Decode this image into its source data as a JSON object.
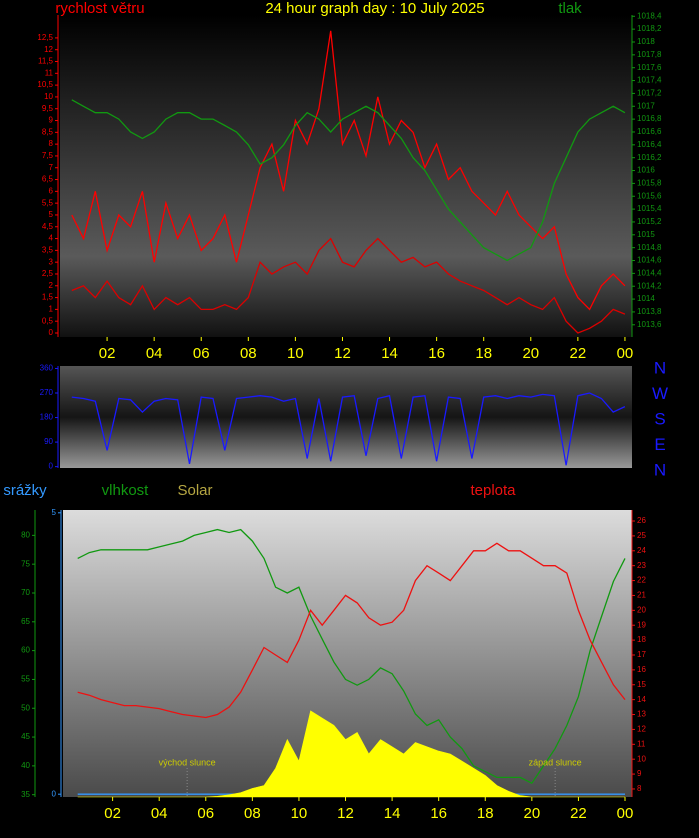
{
  "chart_data": [
    {
      "type": "line",
      "title": "24 hour graph day : 10 July 2025",
      "y_label": "rychlost větru",
      "y2_label": "tlak",
      "x": [
        0.5,
        1,
        1.5,
        2,
        2.5,
        3,
        3.5,
        4,
        4.5,
        5,
        5.5,
        6,
        6.5,
        7,
        7.5,
        8,
        8.5,
        9,
        9.5,
        10,
        10.5,
        11,
        11.5,
        12,
        12.5,
        13,
        13.5,
        14,
        14.5,
        15,
        15.5,
        16,
        16.5,
        17,
        17.5,
        18,
        18.5,
        19,
        19.5,
        20,
        20.5,
        21,
        21.5,
        22,
        22.5,
        23,
        23.5,
        24
      ],
      "xlim": [
        0,
        24.3
      ],
      "xticks": [
        {
          "value": 2,
          "label": "02"
        },
        {
          "value": 4,
          "label": "04"
        },
        {
          "value": 6,
          "label": "06"
        },
        {
          "value": 8,
          "label": "08"
        },
        10,
        12,
        14,
        16,
        18,
        20,
        22,
        {
          "value": 24,
          "label": "00"
        }
      ],
      "ylim": [
        -0.17,
        13.47
      ],
      "yticks": [
        0,
        {
          "value": 0.5,
          "label": "0,5"
        },
        1,
        {
          "value": 1.5,
          "label": "1,5"
        },
        2,
        {
          "value": 2.5,
          "label": "2,5"
        },
        3,
        {
          "value": 3.5,
          "label": "3,5"
        },
        4,
        {
          "value": 4.5,
          "label": "4,5"
        },
        5,
        {
          "value": 5.5,
          "label": "5,5"
        },
        6,
        {
          "value": 6.5,
          "label": "6,5"
        },
        7,
        {
          "value": 7.5,
          "label": "7,5"
        },
        8,
        {
          "value": 8.5,
          "label": "8,5"
        },
        9,
        {
          "value": 9.5,
          "label": "9,5"
        },
        10,
        {
          "value": 10.5,
          "label": "10,5"
        },
        11,
        {
          "value": 11.5,
          "label": "11,5"
        },
        12,
        {
          "value": 12.5,
          "label": "12,5"
        }
      ],
      "y2lim": [
        1013.41,
        1018.42
      ],
      "y2ticks": [
        {
          "value": 1013.6,
          "label": "1013,6"
        },
        {
          "value": 1013.8,
          "label": "1013,8"
        },
        1014,
        {
          "value": 1014.2,
          "label": "1014,2"
        },
        {
          "value": 1014.4,
          "label": "1014,4"
        },
        {
          "value": 1014.6,
          "label": "1014,6"
        },
        {
          "value": 1014.8,
          "label": "1014,8"
        },
        1015,
        {
          "value": 1015.2,
          "label": "1015,2"
        },
        {
          "value": 1015.4,
          "label": "1015,4"
        },
        {
          "value": 1015.6,
          "label": "1015,6"
        },
        {
          "value": 1015.8,
          "label": "1015,8"
        },
        1016,
        {
          "value": 1016.2,
          "label": "1016,2"
        },
        {
          "value": 1016.4,
          "label": "1016,4"
        },
        {
          "value": 1016.6,
          "label": "1016,6"
        },
        {
          "value": 1016.8,
          "label": "1016,8"
        },
        1017,
        {
          "value": 1017.2,
          "label": "1017,2"
        },
        {
          "value": 1017.4,
          "label": "1017,4"
        },
        {
          "value": 1017.6,
          "label": "1017,6"
        },
        {
          "value": 1017.8,
          "label": "1017,8"
        },
        1018,
        {
          "value": 1018.2,
          "label": "1018,2"
        },
        {
          "value": 1018.4,
          "label": "1018,4"
        }
      ],
      "series": [
        {
          "color": "#ff0000",
          "values": [
            5,
            4,
            6,
            3.5,
            5,
            4.5,
            6,
            3,
            5.5,
            4,
            5,
            3.5,
            4,
            5,
            3,
            5,
            7,
            8,
            6,
            9,
            8,
            9.5,
            12.8,
            8,
            9,
            7.5,
            10,
            8,
            9,
            8.5,
            7,
            8,
            6.5,
            7,
            6,
            5.5,
            5,
            6,
            5,
            4.5,
            4,
            4.5,
            2.5,
            1.5,
            1,
            2,
            2.5,
            2
          ]
        },
        {
          "color": "#dd0000",
          "values": [
            1.8,
            2,
            1.5,
            2.2,
            1.5,
            1.2,
            2,
            1,
            1.5,
            1.2,
            1.5,
            1,
            1,
            1.2,
            1,
            1.5,
            3,
            2.5,
            2.8,
            3,
            2.5,
            3.5,
            4,
            3,
            2.8,
            3.5,
            4,
            3.5,
            3,
            3.2,
            2.8,
            3,
            2.5,
            2.2,
            2,
            1.8,
            1.5,
            1.2,
            1.5,
            1.2,
            1,
            1.5,
            0.5,
            0,
            0.2,
            0.5,
            1,
            0.8
          ]
        },
        {
          "color": "#119911",
          "axis": "y2",
          "values": [
            1017.1,
            1017,
            1016.9,
            1016.9,
            1016.8,
            1016.6,
            1016.5,
            1016.6,
            1016.8,
            1016.9,
            1016.9,
            1016.8,
            1016.8,
            1016.7,
            1016.6,
            1016.4,
            1016.1,
            1016.2,
            1016.4,
            1016.7,
            1016.9,
            1016.8,
            1016.6,
            1016.8,
            1016.9,
            1017,
            1016.9,
            1016.7,
            1016.5,
            1016.2,
            1016,
            1015.7,
            1015.4,
            1015.2,
            1015,
            1014.8,
            1014.7,
            1014.6,
            1014.7,
            1014.8,
            1015.2,
            1015.8,
            1016.2,
            1016.6,
            1016.8,
            1016.9,
            1017,
            1016.9
          ]
        }
      ]
    },
    {
      "type": "line",
      "x": [
        0.5,
        1,
        1.5,
        2,
        2.5,
        3,
        3.5,
        4,
        4.5,
        5,
        5.5,
        6,
        6.5,
        7,
        7.5,
        8,
        8.5,
        9,
        9.5,
        10,
        10.5,
        11,
        11.5,
        12,
        12.5,
        13,
        13.5,
        14,
        14.5,
        15,
        15.5,
        16,
        16.5,
        17,
        17.5,
        18,
        18.5,
        19,
        19.5,
        20,
        20.5,
        21,
        21.5,
        22,
        22.5,
        23,
        23.5,
        24
      ],
      "xlim": [
        0,
        24.3
      ],
      "ylim": [
        -5,
        369
      ],
      "yticks": [
        0,
        90,
        180,
        270,
        360
      ],
      "direction_labels": [
        "N",
        "W",
        "S",
        "E",
        "N"
      ],
      "series": [
        {
          "color": "#1a1aff",
          "values": [
            255,
            250,
            240,
            60,
            250,
            245,
            200,
            240,
            250,
            245,
            10,
            255,
            250,
            60,
            250,
            255,
            260,
            255,
            240,
            250,
            30,
            250,
            20,
            255,
            260,
            40,
            250,
            260,
            30,
            255,
            260,
            20,
            255,
            250,
            30,
            255,
            260,
            250,
            260,
            255,
            265,
            260,
            5,
            260,
            270,
            250,
            200,
            220
          ]
        }
      ]
    },
    {
      "type": "line",
      "x": [
        0.5,
        1,
        1.5,
        2,
        2.5,
        3,
        3.5,
        4,
        4.5,
        5,
        5.5,
        6,
        6.5,
        7,
        7.5,
        8,
        8.5,
        9,
        9.5,
        10,
        10.5,
        11,
        11.5,
        12,
        12.5,
        13,
        13.5,
        14,
        14.5,
        15,
        15.5,
        16,
        16.5,
        17,
        17.5,
        18,
        18.5,
        19,
        19.5,
        20,
        20.5,
        21,
        21.5,
        22,
        22.5,
        23,
        23.5,
        24
      ],
      "xlim": [
        -0.13,
        24.3
      ],
      "xticks": [
        {
          "value": 2,
          "label": "02"
        },
        {
          "value": 4,
          "label": "04"
        },
        {
          "value": 6,
          "label": "06"
        },
        {
          "value": 8,
          "label": "08"
        },
        10,
        12,
        14,
        16,
        18,
        20,
        22,
        {
          "value": 24,
          "label": "00"
        }
      ],
      "ylim": [
        34.6,
        84.4
      ],
      "yticks": [
        35,
        40,
        45,
        50,
        55,
        60,
        65,
        70,
        75,
        80
      ],
      "y2lim": [
        7.46,
        26.74
      ],
      "y2ticks": [
        8,
        9,
        10,
        11,
        12,
        13,
        14,
        15,
        16,
        17,
        18,
        19,
        20,
        21,
        22,
        23,
        24,
        25,
        26
      ],
      "y3lim": [
        0,
        2000
      ],
      "y4lim": [
        -0.05,
        5.05
      ],
      "y4ticks": [
        0,
        5
      ],
      "annotations": [
        {
          "text": "východ slunce",
          "x": 5.2
        },
        {
          "text": "západ slunce",
          "x": 21
        }
      ],
      "series": [
        {
          "name": "srážky",
          "color": "#3399ff",
          "axis": "y4",
          "values": [
            0,
            0,
            0,
            0,
            0,
            0,
            0,
            0,
            0,
            0,
            0,
            0,
            0,
            0,
            0,
            0,
            0,
            0,
            0,
            0,
            0,
            0,
            0,
            0,
            0,
            0,
            0,
            0,
            0,
            0,
            0,
            0,
            0,
            0,
            0,
            0,
            0,
            0,
            0,
            0,
            0,
            0,
            0,
            0,
            0,
            0,
            0,
            0
          ]
        },
        {
          "name": "Solar",
          "color": "#ffff00",
          "axis": "y3",
          "fill": true,
          "values": [
            0,
            0,
            0,
            0,
            0,
            0,
            0,
            0,
            0,
            0,
            0,
            0,
            5,
            15,
            30,
            60,
            80,
            200,
            400,
            250,
            600,
            550,
            500,
            400,
            450,
            300,
            400,
            350,
            300,
            380,
            350,
            320,
            300,
            250,
            200,
            150,
            80,
            40,
            10,
            0,
            0,
            0,
            0,
            0,
            0,
            0,
            0,
            0
          ]
        },
        {
          "name": "vlhkost",
          "color": "#119911",
          "values": [
            76,
            77,
            77.5,
            77.5,
            77.5,
            77.5,
            77.5,
            78,
            78.5,
            79,
            80,
            80.5,
            81,
            80.5,
            81,
            79,
            76,
            71,
            70,
            71,
            66,
            62,
            58,
            55,
            54,
            55,
            57,
            56,
            53,
            49,
            47,
            48,
            45,
            43,
            40,
            39,
            38,
            38,
            38,
            37,
            40,
            43,
            47,
            52,
            60,
            66,
            72,
            76
          ]
        },
        {
          "name": "teplota",
          "color": "#ee1111",
          "axis": "y2",
          "values": [
            14.5,
            14.3,
            14,
            13.8,
            13.6,
            13.6,
            13.5,
            13.4,
            13.2,
            13,
            12.9,
            12.8,
            13,
            13.5,
            14.5,
            16,
            17.5,
            17,
            16.5,
            18,
            20,
            19,
            20,
            21,
            20.5,
            19.5,
            19,
            19.2,
            20,
            22,
            23,
            22.5,
            22,
            23,
            24,
            24,
            24.5,
            24,
            24,
            23.5,
            23,
            23,
            22.5,
            20,
            18,
            16.5,
            15,
            14
          ]
        }
      ]
    }
  ]
}
